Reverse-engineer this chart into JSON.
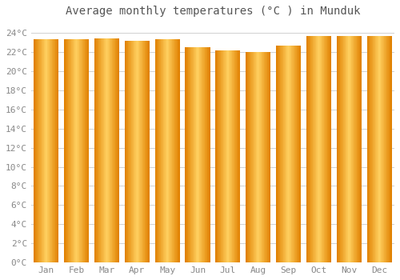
{
  "title": "Average monthly temperatures (°C ) in Munduk",
  "months": [
    "Jan",
    "Feb",
    "Mar",
    "Apr",
    "May",
    "Jun",
    "Jul",
    "Aug",
    "Sep",
    "Oct",
    "Nov",
    "Dec"
  ],
  "values": [
    23.3,
    23.3,
    23.4,
    23.2,
    23.3,
    22.5,
    22.2,
    22.0,
    22.7,
    23.7,
    23.7,
    23.7
  ],
  "bar_color_main": "#FFA500",
  "bar_color_light": "#FFD060",
  "bar_color_dark": "#E08000",
  "background_color": "#FFFFFF",
  "plot_bg_color": "#FFFFFF",
  "grid_color": "#D0D0D0",
  "ylim": [
    0,
    25
  ],
  "yticks": [
    0,
    2,
    4,
    6,
    8,
    10,
    12,
    14,
    16,
    18,
    20,
    22,
    24
  ],
  "title_fontsize": 10,
  "tick_fontsize": 8,
  "tick_font_color": "#888888"
}
